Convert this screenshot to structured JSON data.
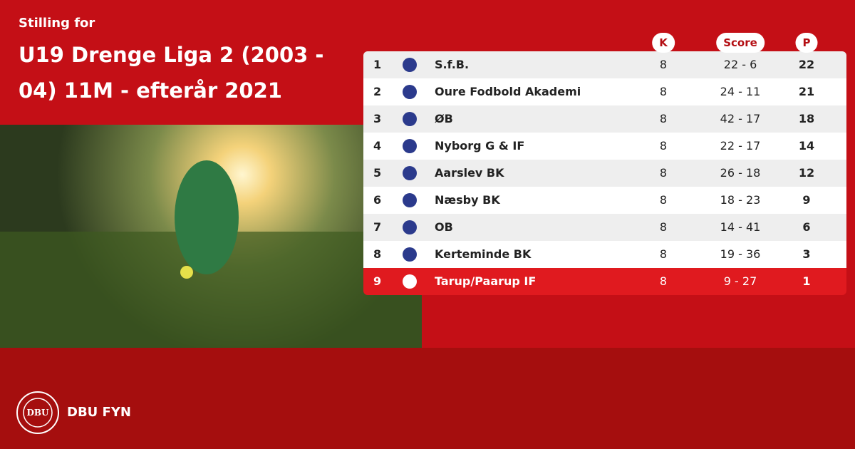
{
  "header": {
    "pretitle": "Stilling for",
    "title": "U19 Drenge Liga 2 (2003 - 04) 11M - efterår 2021"
  },
  "table": {
    "columns": [
      "K",
      "Score",
      "P"
    ],
    "rows": [
      {
        "rank": "1",
        "team": "S.f.B.",
        "k": "8",
        "score": "22 - 6",
        "p": "22"
      },
      {
        "rank": "2",
        "team": "Oure Fodbold Akademi",
        "k": "8",
        "score": "24 - 11",
        "p": "21"
      },
      {
        "rank": "3",
        "team": "ØB",
        "k": "8",
        "score": "42 - 17",
        "p": "18"
      },
      {
        "rank": "4",
        "team": "Nyborg G & IF",
        "k": "8",
        "score": "22 - 17",
        "p": "14"
      },
      {
        "rank": "5",
        "team": "Aarslev BK",
        "k": "8",
        "score": "26 - 18",
        "p": "12"
      },
      {
        "rank": "6",
        "team": "Næsby BK",
        "k": "8",
        "score": "18 - 23",
        "p": "9"
      },
      {
        "rank": "7",
        "team": "OB",
        "k": "8",
        "score": "14 - 41",
        "p": "6"
      },
      {
        "rank": "8",
        "team": "Kerteminde BK",
        "k": "8",
        "score": "19 - 36",
        "p": "3"
      },
      {
        "rank": "9",
        "team": "Tarup/Paarup IF",
        "k": "8",
        "score": "9 - 27",
        "p": "1"
      }
    ]
  },
  "footer": {
    "logo": "DBU",
    "name": "DBU FYN"
  }
}
